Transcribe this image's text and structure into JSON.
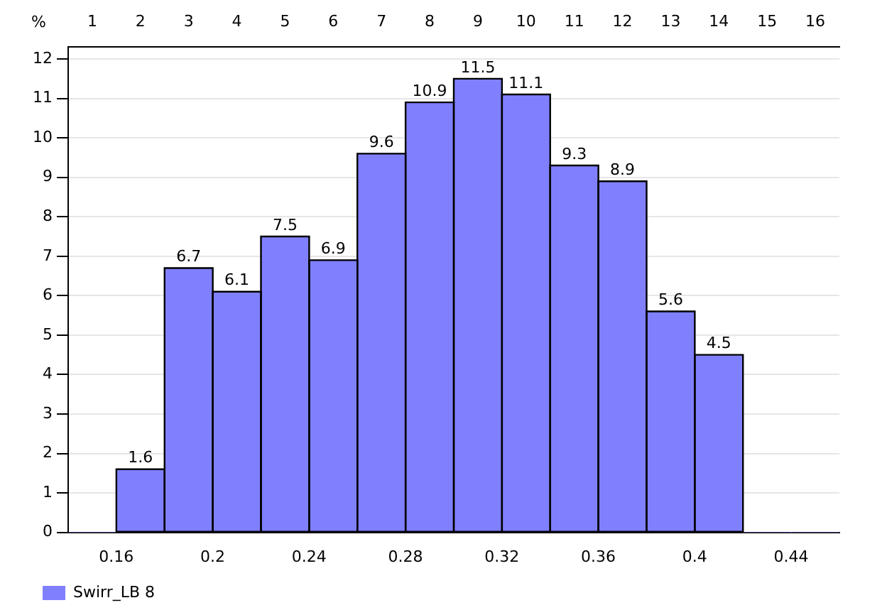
{
  "chart_data": {
    "type": "histogram",
    "ylabel": "%",
    "bins": [
      0.14,
      0.16,
      0.18,
      0.2,
      0.22,
      0.24,
      0.26,
      0.28,
      0.3,
      0.32,
      0.34,
      0.36,
      0.38,
      0.4,
      0.42,
      0.44,
      0.46
    ],
    "series": [
      {
        "name": "Swirr_LB 8",
        "color": "#8080ff",
        "values": [
          0,
          1.6,
          6.7,
          6.1,
          7.5,
          6.9,
          9.6,
          10.9,
          11.5,
          11.1,
          9.3,
          8.9,
          5.6,
          4.5,
          0,
          0
        ],
        "value_labels": [
          null,
          "1.6",
          "6.7",
          "6.1",
          "7.5",
          "6.9",
          "9.6",
          "10.9",
          "11.5",
          "11.1",
          "9.3",
          "8.9",
          "5.6",
          "4.5",
          null,
          null
        ]
      }
    ],
    "xlim": [
      0.14,
      0.46
    ],
    "xticks": [
      0.16,
      0.2,
      0.24,
      0.28,
      0.32,
      0.36,
      0.4,
      0.44
    ],
    "ylim": [
      0,
      12.3
    ],
    "yticks": [
      0,
      1,
      2,
      3,
      4,
      5,
      6,
      7,
      8,
      9,
      10,
      11,
      12
    ],
    "x2lim": [
      0.5,
      16.5
    ],
    "x2ticks": [
      1,
      2,
      3,
      4,
      5,
      6,
      7,
      8,
      9,
      10,
      11,
      12,
      13,
      14,
      15,
      16
    ],
    "grid": "y",
    "legend": "bottom left"
  }
}
